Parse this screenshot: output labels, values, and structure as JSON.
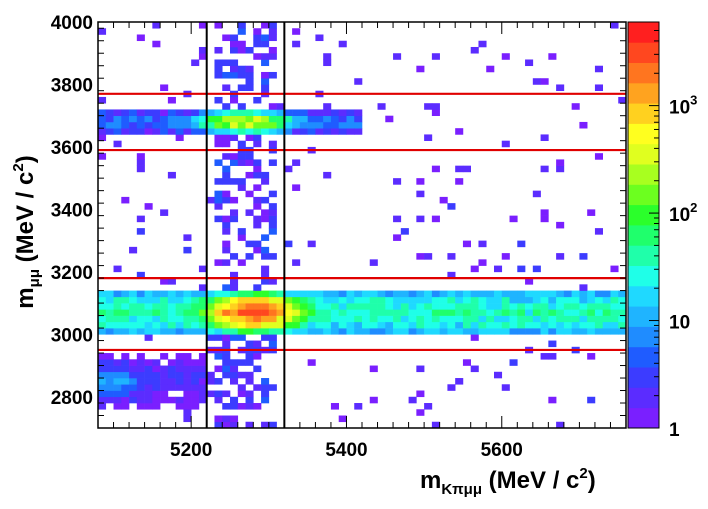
{
  "chart_data": {
    "type": "heatmap",
    "title": "",
    "xlabel": {
      "main": "m",
      "sub": "Kπμμ",
      "unit": " (MeV / c",
      "sup": "2",
      "close": ")"
    },
    "ylabel": {
      "main": "m",
      "sub": "μμ",
      "unit": " (MeV / c",
      "sup": "2",
      "close": ")"
    },
    "xlim": [
      5080,
      5760
    ],
    "ylim": [
      2700,
      4000
    ],
    "x_ticks": [
      {
        "value": 5200,
        "label": "5200"
      },
      {
        "value": 5400,
        "label": "5400"
      },
      {
        "value": 5600,
        "label": "5600"
      }
    ],
    "y_ticks": [
      {
        "value": 2800,
        "label": "2800"
      },
      {
        "value": 3000,
        "label": "3000"
      },
      {
        "value": 3200,
        "label": "3200"
      },
      {
        "value": 3400,
        "label": "3400"
      },
      {
        "value": 3600,
        "label": "3600"
      },
      {
        "value": 3800,
        "label": "3800"
      },
      {
        "value": 4000,
        "label": "4000"
      }
    ],
    "color_scale": {
      "type": "log",
      "range": [
        1,
        6000
      ],
      "labels": [
        {
          "value": 1,
          "label": "1"
        },
        {
          "value": 10,
          "label": "10"
        },
        {
          "value": 100,
          "label": "10",
          "sup": "2"
        },
        {
          "value": 1000,
          "label": "10",
          "sup": "3"
        }
      ],
      "palette": [
        "#7a1fff",
        "#5b2cff",
        "#3c3cff",
        "#1f5cff",
        "#1f8cff",
        "#1fb4ff",
        "#1fd9ff",
        "#1fffe8",
        "#1fffaa",
        "#1fff6c",
        "#2bff2b",
        "#6cff1f",
        "#a8ff1f",
        "#e0ff1f",
        "#ffff1f",
        "#ffd11f",
        "#ffa31f",
        "#ff751f",
        "#ff471f",
        "#ff1f1f"
      ]
    },
    "bin_width_x": 10,
    "bin_width_y": 20,
    "cuts": {
      "vertical_lines": [
        5220,
        5320
      ],
      "horizontal_lines": [
        2950,
        3180,
        3590,
        3770
      ],
      "vertical_color": "#000000",
      "horizontal_color": "#e00000"
    },
    "bands": [
      {
        "y_center": 3070,
        "y_half_width": 70,
        "x_from": 5080,
        "x_to": 5760,
        "peak_x": 5280,
        "peak_count": 5000,
        "baseline_count": 40,
        "edge_falloff": 0.6
      },
      {
        "y_center": 3680,
        "y_half_width": 40,
        "x_from": 5080,
        "x_to": 5420,
        "peak_x": 5270,
        "peak_count": 700,
        "baseline_count": 6,
        "edge_falloff": 0.5
      },
      {
        "y_center": 2850,
        "y_half_width": 90,
        "x_from": 5080,
        "x_to": 5220,
        "peak_x": 5100,
        "peak_count": 12,
        "baseline_count": 2,
        "edge_falloff": 0.3
      }
    ],
    "peak_column": {
      "x_from": 5230,
      "x_to": 5310,
      "y_from": 2700,
      "y_to": 4000,
      "count": 3
    }
  }
}
